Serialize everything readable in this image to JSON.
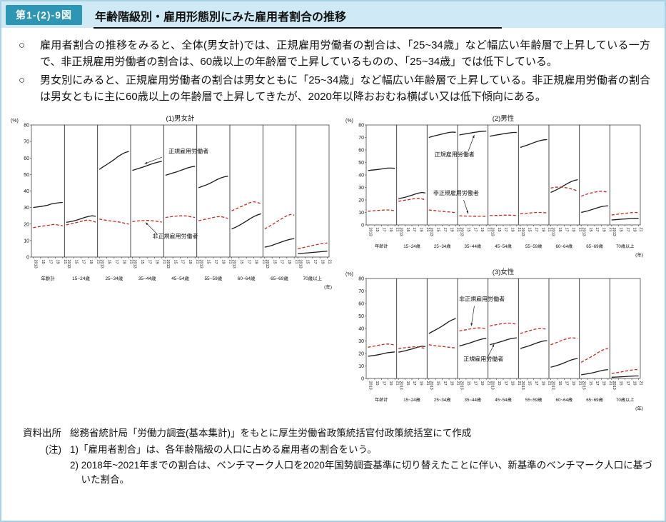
{
  "theme": {
    "header_bg": "#cfe9f5",
    "badge_bg": "#2d96b5",
    "panel_border": "#a9d2e4",
    "regular_line_color": "#1a1a1a",
    "nonregular_line_color": "#c8251c"
  },
  "page": {
    "figure_label": "第1-(2)-9図",
    "title": "年齢階級別・雇用形態別にみた雇用者割合の推移"
  },
  "body": {
    "bullets": [
      {
        "marker": "○",
        "text": "雇用者割合の推移をみると、全体(男女計)では、正規雇用労働者の割合は、「25~34歳」など幅広い年齢層で上昇している一方で、非正規雇用労働者の割合は、60歳以上の年齢層で上昇しているものの、「25~34歳」では低下している。"
      },
      {
        "marker": "○",
        "text": "男女別にみると、正規雇用労働者の割合は男女ともに「25~34歳」など幅広い年齢層で上昇している。非正規雇用労働者の割合は男女ともに主に60歳以上の年齢層で上昇してきたが、2020年以降おおむね横ばい又は低下傾向にある。"
      }
    ]
  },
  "notes": {
    "source_label": "資料出所",
    "source_text": "総務省統計局「労働力調査(基本集計)」をもとに厚生労働省政策統括官付政策統括室にて作成",
    "note_label": "(注)",
    "note1": "1)「雇用者割合」は、各年齢階級の人口に占める雇用者の割合をいう。",
    "note2": "2) 2018年~2021年までの割合は、ベンチマーク人口を2020年国勢調査基準に切り替えたことに伴い、新基準のベンチマーク人口に基づいた割合。"
  },
  "chart_data": [
    {
      "name": "chart-total",
      "type": "line",
      "title": "(1)男女計",
      "ylabel": "(%)",
      "x_unit": "(年)",
      "ylim": [
        0,
        80
      ],
      "yticks": [
        0,
        10,
        20,
        30,
        40,
        50,
        60,
        70,
        80
      ],
      "x_years": [
        2013,
        2014,
        2015,
        2016,
        2017,
        2018,
        2019,
        2020,
        2021
      ],
      "x_tick_labels": [
        "2013",
        "15",
        "17",
        "19",
        "21"
      ],
      "x_tick_idx": [
        0,
        2,
        4,
        6,
        8
      ],
      "age_groups": [
        "年齢計",
        "15~24歳",
        "25~34歳",
        "35~44歳",
        "45~54歳",
        "55~59歳",
        "60~64歳",
        "65~69歳",
        "70歳以上"
      ],
      "series": [
        {
          "name": "正規雇用労働者",
          "color": "#1a1a1a",
          "style": "solid",
          "values_by_group": [
            [
              30.0,
              30.3,
              30.6,
              31.0,
              31.5,
              32.2,
              32.6,
              32.9,
              33.1
            ],
            [
              21.0,
              21.4,
              21.9,
              22.5,
              23.2,
              24.0,
              24.6,
              25.0,
              24.7
            ],
            [
              53.0,
              54.6,
              56.0,
              57.5,
              59.0,
              60.8,
              62.2,
              63.3,
              64.0
            ],
            [
              52.5,
              53.2,
              53.9,
              54.6,
              55.4,
              56.2,
              56.9,
              57.5,
              58.0
            ],
            [
              49.5,
              50.2,
              50.9,
              51.6,
              52.4,
              53.2,
              54.0,
              54.6,
              55.0
            ],
            [
              42.0,
              42.8,
              43.6,
              44.6,
              45.7,
              46.9,
              47.9,
              48.6,
              49.0
            ],
            [
              17.0,
              18.0,
              19.1,
              20.4,
              21.8,
              23.2,
              24.5,
              25.5,
              26.2
            ],
            [
              6.0,
              6.5,
              7.1,
              7.9,
              8.7,
              9.5,
              10.2,
              10.8,
              11.2
            ],
            [
              2.0,
              2.2,
              2.4,
              2.6,
              2.8,
              3.0,
              3.2,
              3.4,
              3.5
            ]
          ]
        },
        {
          "name": "非正規雇用労働者",
          "color": "#c8251c",
          "style": "dashed",
          "values_by_group": [
            [
              17.8,
              18.2,
              18.6,
              18.9,
              19.2,
              19.6,
              19.8,
              19.3,
              19.0
            ],
            [
              19.5,
              20.0,
              20.5,
              21.0,
              21.6,
              22.2,
              22.5,
              21.8,
              21.2
            ],
            [
              23.0,
              22.6,
              22.2,
              21.9,
              21.6,
              21.3,
              21.0,
              20.4,
              20.0
            ],
            [
              21.5,
              21.8,
              22.0,
              22.1,
              22.2,
              22.1,
              21.9,
              21.5,
              21.2
            ],
            [
              24.0,
              24.3,
              24.6,
              24.8,
              25.0,
              25.0,
              24.8,
              24.3,
              24.0
            ],
            [
              22.0,
              22.5,
              23.0,
              23.5,
              24.0,
              24.4,
              24.5,
              24.0,
              23.5
            ],
            [
              28.0,
              29.0,
              30.0,
              31.0,
              32.0,
              33.0,
              33.5,
              33.0,
              32.4
            ],
            [
              17.0,
              18.3,
              19.6,
              21.0,
              22.4,
              23.8,
              25.0,
              25.8,
              25.4
            ],
            [
              5.0,
              5.5,
              6.0,
              6.5,
              7.0,
              7.5,
              8.0,
              8.3,
              8.5
            ]
          ]
        }
      ],
      "annotations": [
        {
          "label": "正規雇用労働者",
          "tx": 4.75,
          "ty": 63,
          "ax1": 3.95,
          "ay1": 60.5,
          "ax2": 3.42,
          "ay2": 56.5
        },
        {
          "label": "非正規雇用労働者",
          "tx": 4.35,
          "ty": 11.5,
          "ax1": 3.8,
          "ay1": 14,
          "ax2": 3.45,
          "ay2": 21
        }
      ]
    },
    {
      "name": "chart-male",
      "type": "line",
      "title": "(2)男性",
      "ylabel": "(%)",
      "x_unit": "(年)",
      "ylim": [
        0,
        80
      ],
      "yticks": [
        0,
        10,
        20,
        30,
        40,
        50,
        60,
        70,
        80
      ],
      "x_years": [
        2013,
        2014,
        2015,
        2016,
        2017,
        2018,
        2019,
        2020,
        2021
      ],
      "x_tick_labels": [
        "2013",
        "15",
        "17",
        "19",
        "21"
      ],
      "x_tick_idx": [
        0,
        2,
        4,
        6,
        8
      ],
      "age_groups": [
        "年齢計",
        "15~24歳",
        "25~34歳",
        "35~44歳",
        "45~54歳",
        "55~59歳",
        "60~64歳",
        "65~69歳",
        "70歳以上"
      ],
      "series": [
        {
          "name": "正規雇用労働者",
          "color": "#1a1a1a",
          "style": "solid",
          "values_by_group": [
            [
              43.5,
              43.8,
              44.1,
              44.4,
              44.8,
              45.2,
              45.5,
              45.5,
              45.3
            ],
            [
              21.0,
              21.6,
              22.2,
              23.0,
              23.8,
              24.7,
              25.5,
              26.0,
              25.6
            ],
            [
              70.0,
              70.8,
              71.5,
              72.1,
              72.8,
              73.4,
              74.0,
              74.3,
              74.1
            ],
            [
              72.0,
              72.5,
              73.0,
              73.4,
              73.9,
              74.3,
              74.7,
              75.0,
              75.1
            ],
            [
              71.0,
              71.5,
              72.0,
              72.4,
              72.9,
              73.3,
              73.7,
              74.0,
              74.0
            ],
            [
              62.0,
              62.9,
              63.8,
              64.8,
              65.8,
              66.8,
              67.6,
              68.1,
              68.3
            ],
            [
              26.0,
              27.2,
              28.5,
              30.0,
              31.6,
              33.2,
              34.6,
              35.6,
              36.2
            ],
            [
              10.0,
              10.6,
              11.3,
              12.1,
              13.0,
              13.9,
              14.6,
              15.1,
              15.3
            ],
            [
              4.0,
              4.2,
              4.4,
              4.6,
              4.8,
              5.0,
              5.2,
              5.3,
              5.3
            ]
          ]
        },
        {
          "name": "非正規雇用労働者",
          "color": "#c8251c",
          "style": "dashed",
          "values_by_group": [
            [
              11.0,
              11.2,
              11.4,
              11.6,
              11.8,
              12.0,
              12.0,
              11.7,
              11.4
            ],
            [
              19.0,
              19.4,
              19.8,
              20.2,
              20.7,
              21.2,
              21.4,
              20.8,
              20.2
            ],
            [
              12.0,
              11.7,
              11.4,
              11.1,
              10.9,
              10.6,
              10.4,
              10.1,
              9.8
            ],
            [
              7.3,
              7.2,
              7.1,
              7.1,
              7.0,
              7.0,
              6.9,
              6.9,
              6.8
            ],
            [
              7.5,
              7.6,
              7.6,
              7.7,
              7.8,
              7.8,
              7.8,
              7.7,
              7.6
            ],
            [
              9.0,
              9.2,
              9.4,
              9.6,
              9.8,
              10.0,
              10.0,
              9.8,
              9.6
            ],
            [
              29.5,
              30.0,
              30.3,
              30.3,
              30.0,
              29.6,
              29.0,
              28.1,
              27.2
            ],
            [
              23.0,
              24.0,
              24.9,
              25.6,
              26.2,
              26.7,
              27.0,
              26.7,
              26.2
            ],
            [
              8.0,
              8.3,
              8.6,
              9.0,
              9.3,
              9.6,
              9.9,
              10.0,
              9.8
            ]
          ]
        }
      ],
      "annotations": [
        {
          "label": "正規雇用労働者",
          "tx": 2.9,
          "ty": 55,
          "ax1": 3.35,
          "ay1": 59,
          "ax2": 3.55,
          "ay2": 72
        },
        {
          "label": "非正規雇用労働者",
          "tx": 2.95,
          "ty": 24,
          "ax1": 3.2,
          "ay1": 20,
          "ax2": 3.35,
          "ay2": 9
        }
      ]
    },
    {
      "name": "chart-female",
      "type": "line",
      "title": "(3)女性",
      "ylabel": "(%)",
      "x_unit": "(年)",
      "ylim": [
        0,
        80
      ],
      "yticks": [
        0,
        10,
        20,
        30,
        40,
        50,
        60,
        70,
        80
      ],
      "x_years": [
        2013,
        2014,
        2015,
        2016,
        2017,
        2018,
        2019,
        2020,
        2021
      ],
      "x_tick_labels": [
        "2013",
        "15",
        "17",
        "19",
        "21"
      ],
      "x_tick_idx": [
        0,
        2,
        4,
        6,
        8
      ],
      "age_groups": [
        "年齢計",
        "15~24歳",
        "25~34歳",
        "35~44歳",
        "45~54歳",
        "55~59歳",
        "60~64歳",
        "65~69歳",
        "70歳以上"
      ],
      "series": [
        {
          "name": "正規雇用労働者",
          "color": "#1a1a1a",
          "style": "solid",
          "values_by_group": [
            [
              17.8,
              18.1,
              18.5,
              19.0,
              19.5,
              20.1,
              20.7,
              21.0,
              21.2
            ],
            [
              21.0,
              21.6,
              22.2,
              22.9,
              23.6,
              24.4,
              25.2,
              25.8,
              25.5
            ],
            [
              36.0,
              37.4,
              38.9,
              40.4,
              42.0,
              43.8,
              45.6,
              47.0,
              48.0
            ],
            [
              26.0,
              26.7,
              27.5,
              28.3,
              29.2,
              30.1,
              31.0,
              31.7,
              32.1
            ],
            [
              27.0,
              27.7,
              28.4,
              29.2,
              30.0,
              30.9,
              31.7,
              32.2,
              32.5
            ],
            [
              24.0,
              24.8,
              25.6,
              26.5,
              27.5,
              28.5,
              29.4,
              30.0,
              30.3
            ],
            [
              9.0,
              9.7,
              10.5,
              11.4,
              12.5,
              13.6,
              14.7,
              15.5,
              16.0
            ],
            [
              3.0,
              3.4,
              3.8,
              4.3,
              4.9,
              5.6,
              6.3,
              6.8,
              7.1
            ],
            [
              1.0,
              1.1,
              1.2,
              1.4,
              1.5,
              1.7,
              1.9,
              2.0,
              2.0
            ]
          ]
        },
        {
          "name": "非正規雇用労働者",
          "color": "#c8251c",
          "style": "dashed",
          "values_by_group": [
            [
              25.0,
              25.5,
              26.0,
              26.5,
              27.0,
              27.4,
              27.6,
              27.2,
              26.8
            ],
            [
              24.0,
              24.3,
              24.6,
              24.9,
              25.2,
              25.4,
              25.2,
              24.6,
              24.0
            ],
            [
              27.0,
              26.6,
              26.2,
              25.9,
              25.6,
              25.3,
              25.0,
              24.7,
              24.4
            ],
            [
              38.0,
              38.5,
              39.0,
              39.5,
              40.0,
              40.4,
              40.5,
              40.2,
              39.9
            ],
            [
              42.0,
              42.6,
              43.1,
              43.6,
              44.0,
              44.3,
              44.3,
              43.9,
              43.4
            ],
            [
              36.0,
              36.8,
              37.6,
              38.4,
              39.2,
              39.8,
              40.1,
              39.8,
              39.4
            ],
            [
              27.0,
              28.0,
              29.0,
              30.1,
              31.1,
              32.0,
              32.6,
              32.4,
              32.0
            ],
            [
              13.0,
              14.4,
              15.9,
              17.4,
              19.0,
              20.7,
              22.3,
              23.4,
              24.0
            ],
            [
              4.0,
              4.4,
              4.8,
              5.3,
              5.8,
              6.3,
              6.8,
              7.1,
              7.2
            ]
          ]
        }
      ],
      "annotations": [
        {
          "label": "非正規雇用労働者",
          "tx": 3.8,
          "ty": 62,
          "ax1": 3.55,
          "ay1": 58,
          "ax2": 3.45,
          "ay2": 42
        },
        {
          "label": "正規雇用労働者",
          "tx": 3.85,
          "ty": 14,
          "ax1": 4.0,
          "ay1": 17.5,
          "ax2": 4.2,
          "ay2": 27.5
        }
      ]
    }
  ]
}
